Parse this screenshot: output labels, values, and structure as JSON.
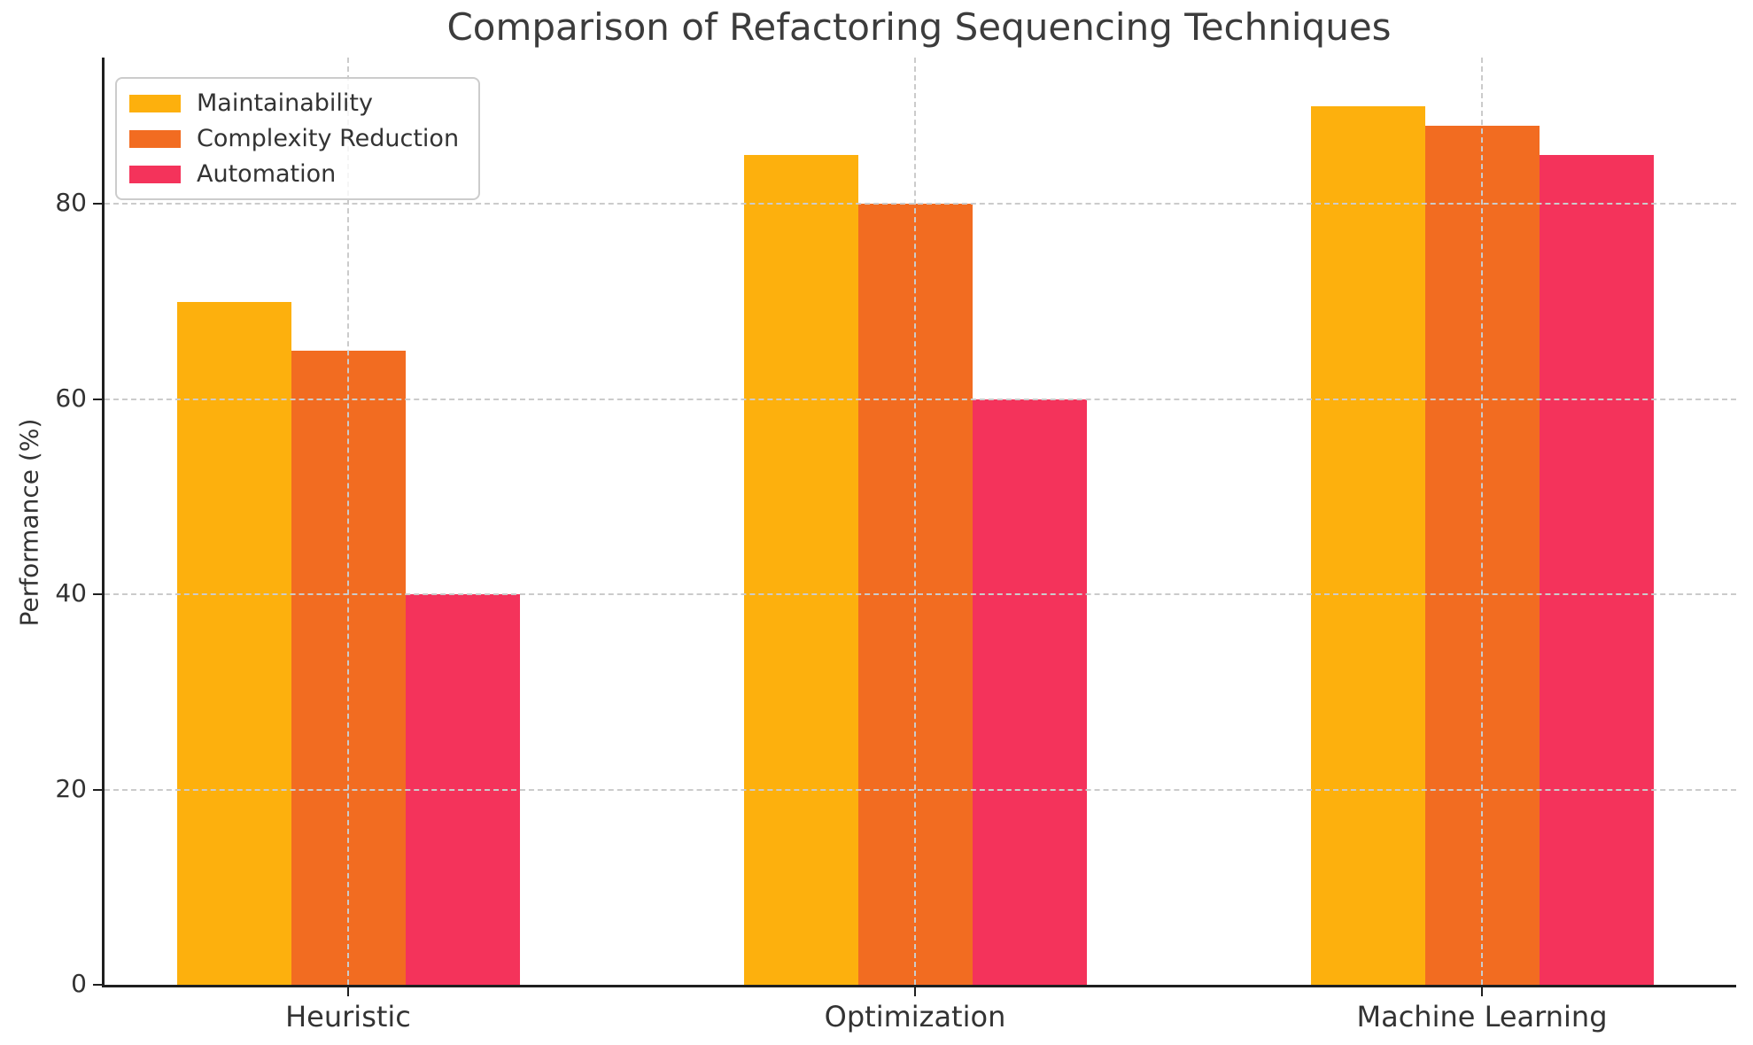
{
  "chart_data": {
    "type": "bar",
    "title": "Comparison of Refactoring Sequencing Techniques",
    "ylabel": "Performance (%)",
    "xlabel": "",
    "categories": [
      "Heuristic",
      "Optimization",
      "Machine Learning"
    ],
    "series": [
      {
        "name": "Maintainability",
        "color": "#FDB00D",
        "values": [
          70,
          85,
          90
        ]
      },
      {
        "name": "Complexity Reduction",
        "color": "#F26C21",
        "values": [
          65,
          80,
          88
        ]
      },
      {
        "name": "Automation",
        "color": "#F4335B",
        "values": [
          40,
          60,
          85
        ]
      }
    ],
    "yticks": [
      0,
      20,
      40,
      60,
      80
    ],
    "ylim": [
      0,
      95
    ],
    "grid": "dashed",
    "grid_above_bars": true,
    "legend_position": "upper-left",
    "legend_labels": [
      "Maintainability",
      "Complexity Reduction",
      "Automation"
    ]
  },
  "colors": {
    "text": "#333333",
    "grid": "#cbcbcb",
    "spine": "#1f1f1f",
    "background": "#ffffff",
    "legend_border": "#cccccc"
  }
}
